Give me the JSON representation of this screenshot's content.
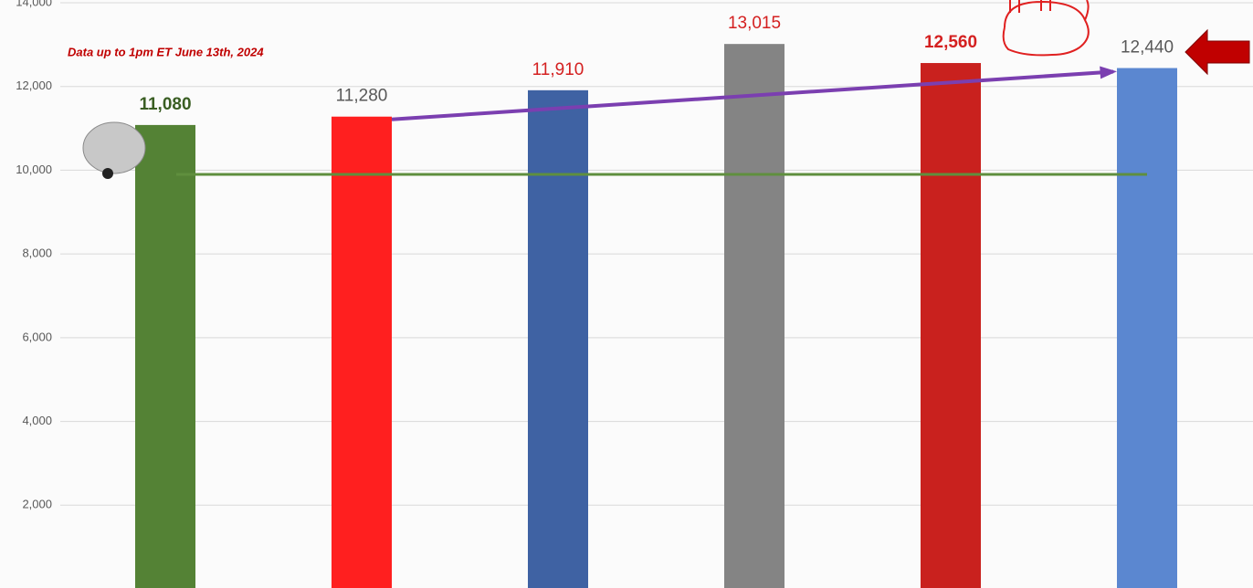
{
  "chart_data": {
    "type": "bar",
    "annotation": "Data up to 1pm ET June 13th, 2024",
    "values": [
      11080,
      11280,
      11910,
      13015,
      12560,
      12440
    ],
    "value_labels": [
      "11,080",
      "11,280",
      "11,910",
      "13,015",
      "12,560",
      "12,440"
    ],
    "colors": [
      "#548235",
      "#ff1f1f",
      "#3f62a3",
      "#848484",
      "#c9211e",
      "#5b87d0"
    ],
    "label_colors": [
      "#3a5e23",
      "#595959",
      "#d42020",
      "#d42020",
      "#d42020",
      "#595959"
    ],
    "label_bold": [
      true,
      false,
      false,
      false,
      true,
      false
    ],
    "ylim": [
      0,
      14000
    ],
    "yticks": [
      {
        "value": 2000,
        "label": "2,000"
      },
      {
        "value": 4000,
        "label": "4,000"
      },
      {
        "value": 6000,
        "label": "6,000"
      },
      {
        "value": 8000,
        "label": "8,000"
      },
      {
        "value": 10000,
        "label": "10,000"
      },
      {
        "value": 12000,
        "label": "12,000"
      },
      {
        "value": 14000,
        "label": "14,000"
      }
    ],
    "grid": true,
    "reference_line": {
      "value": 9900,
      "color": "#5f8f3e"
    },
    "trend_color": "#7b3fb0"
  }
}
